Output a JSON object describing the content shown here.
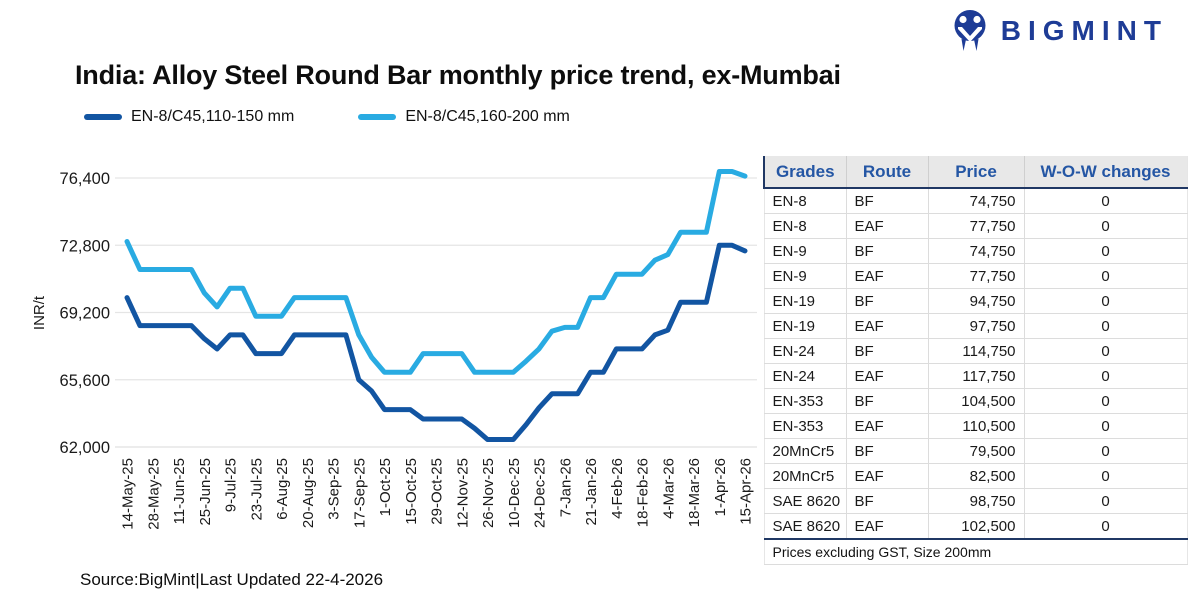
{
  "brand": {
    "name": "BIGMINT"
  },
  "title": "India: Alloy Steel Round Bar monthly price trend, ex-Mumbai",
  "source_note": "Source:BigMint|Last Updated 22-4-2026",
  "colors": {
    "series_dark": "#1255a2",
    "series_light": "#29abe2",
    "table_header_text": "#2456a4",
    "navy_border": "#203864",
    "logo_blue": "#1e3c96",
    "gridline": "#e5e5e5",
    "header_bg": "#e8e8e8"
  },
  "chart_data": {
    "type": "line",
    "title": "India: Alloy Steel Round Bar monthly price trend, ex-Mumbai",
    "xlabel": "",
    "ylabel": "INR/t",
    "ylim": [
      62000,
      76400
    ],
    "grid": "horizontal",
    "legend_position": "top-left",
    "y_ticks": [
      62000,
      65600,
      69200,
      72800,
      76400
    ],
    "y_tick_labels": [
      "62,000",
      "65,600",
      "69,200",
      "72,800",
      "76,400"
    ],
    "x_labels": [
      "14-May-25",
      "28-May-25",
      "11-Jun-25",
      "25-Jun-25",
      "9-Jul-25",
      "23-Jul-25",
      "6-Aug-25",
      "20-Aug-25",
      "3-Sep-25",
      "17-Sep-25",
      "1-Oct-25",
      "15-Oct-25",
      "29-Oct-25",
      "12-Nov-25",
      "26-Nov-25",
      "10-Dec-25",
      "24-Dec-25",
      "7-Jan-26",
      "21-Jan-26",
      "4-Feb-26",
      "18-Feb-26",
      "4-Mar-26",
      "18-Mar-26",
      "1-Apr-26",
      "15-Apr-26"
    ],
    "points_per_label": 2,
    "series": [
      {
        "name": "EN-8/C45,110-150 mm",
        "color": "#1255a2",
        "values": [
          70000,
          68500,
          68500,
          68500,
          68500,
          68500,
          67800,
          67250,
          68000,
          68000,
          67000,
          67000,
          67000,
          68000,
          68000,
          68000,
          68000,
          68000,
          65600,
          65000,
          64000,
          64000,
          64000,
          63500,
          63500,
          63500,
          63500,
          63000,
          62400,
          62400,
          62400,
          63200,
          64100,
          64850,
          64850,
          64850,
          66000,
          66000,
          67250,
          67250,
          67250,
          68000,
          68250,
          69750,
          69750,
          69750,
          72800,
          72800,
          72500
        ]
      },
      {
        "name": "EN-8/C45,160-200 mm",
        "color": "#29abe2",
        "values": [
          73000,
          71500,
          71500,
          71500,
          71500,
          71500,
          70250,
          69500,
          70500,
          70500,
          69000,
          69000,
          69000,
          70000,
          70000,
          70000,
          70000,
          70000,
          68000,
          66800,
          66000,
          66000,
          66000,
          67000,
          67000,
          67000,
          67000,
          66000,
          66000,
          66000,
          66000,
          66600,
          67250,
          68200,
          68400,
          68400,
          70000,
          70000,
          71250,
          71250,
          71250,
          72000,
          72300,
          73500,
          73500,
          73500,
          76750,
          76750,
          76500
        ]
      }
    ]
  },
  "table": {
    "headers": [
      "Grades",
      "Route",
      "Price",
      "W-O-W changes"
    ],
    "rows": [
      [
        "EN-8",
        "BF",
        "74,750",
        "0"
      ],
      [
        "EN-8",
        "EAF",
        "77,750",
        "0"
      ],
      [
        "EN-9",
        "BF",
        "74,750",
        "0"
      ],
      [
        "EN-9",
        "EAF",
        "77,750",
        "0"
      ],
      [
        "EN-19",
        "BF",
        "94,750",
        "0"
      ],
      [
        "EN-19",
        "EAF",
        "97,750",
        "0"
      ],
      [
        "EN-24",
        "BF",
        "114,750",
        "0"
      ],
      [
        "EN-24",
        "EAF",
        "117,750",
        "0"
      ],
      [
        "EN-353",
        "BF",
        "104,500",
        "0"
      ],
      [
        "EN-353",
        "EAF",
        "110,500",
        "0"
      ],
      [
        "20MnCr5",
        "BF",
        "79,500",
        "0"
      ],
      [
        "20MnCr5",
        "EAF",
        "82,500",
        "0"
      ],
      [
        "SAE 8620",
        "BF",
        "98,750",
        "0"
      ],
      [
        "SAE 8620",
        "EAF",
        "102,500",
        "0"
      ]
    ],
    "footnote": "Prices excluding GST, Size 200mm"
  }
}
